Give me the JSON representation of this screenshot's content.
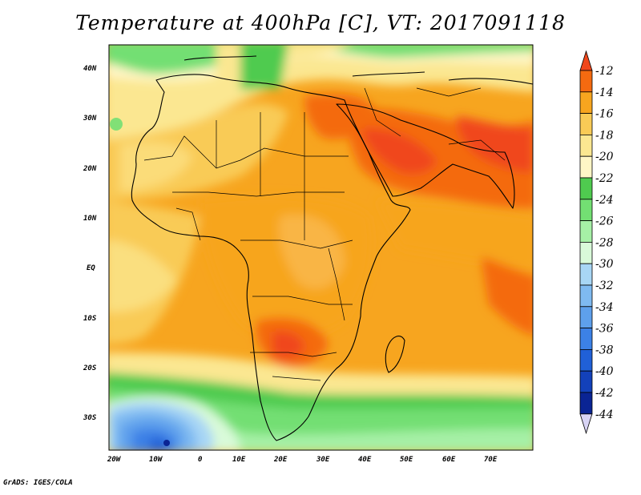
{
  "title": "Temperature at 400hPa [C], VT: 2017091118",
  "credit": "GrADS: IGES/COLA",
  "map": {
    "lat_labels": [
      "40N",
      "30N",
      "20N",
      "10N",
      "EQ",
      "10S",
      "20S",
      "30S"
    ],
    "lon_labels": [
      "20W",
      "10W",
      "0",
      "10E",
      "20E",
      "30E",
      "40E",
      "50E",
      "60E",
      "70E"
    ]
  },
  "colorbar": {
    "levels": [
      "-12",
      "-14",
      "-16",
      "-18",
      "-20",
      "-22",
      "-24",
      "-26",
      "-28",
      "-30",
      "-32",
      "-34",
      "-36",
      "-38",
      "-40",
      "-42",
      "-44"
    ],
    "colors": [
      "#f0471c",
      "#f46a10",
      "#f7a51f",
      "#f9cb56",
      "#fbe791",
      "#fff6c6",
      "#4fcb4f",
      "#73df73",
      "#a6f0a6",
      "#d9fad9",
      "#a8d6f5",
      "#7fbaf1",
      "#5ea0ec",
      "#3c81e6",
      "#2060d7",
      "#1341ba",
      "#0a2494",
      "#d8d4f5"
    ]
  },
  "colors": {
    "land_border": "#000000",
    "panel_border": "#000000"
  }
}
